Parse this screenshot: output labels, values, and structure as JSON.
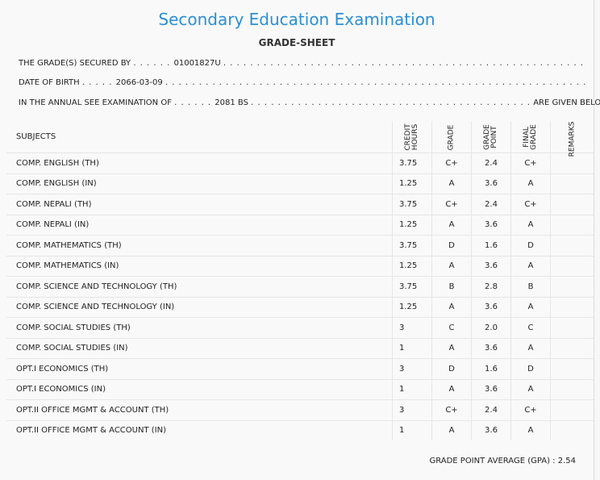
{
  "title": "Secondary Education Examination",
  "subtitle": "GRADE-SHEET",
  "info": {
    "secured_label": "THE GRADE(S) SECURED BY",
    "secured_value": "01001827U",
    "dob_label": "DATE OF BIRTH",
    "dob_value": "2066-03-09",
    "exam_label": "IN THE ANNUAL SEE EXAMINATION OF",
    "exam_value": "2081 BS",
    "given_below": "ARE GIVEN BELOW . . ."
  },
  "table": {
    "headers": {
      "subjects": "SUBJECTS",
      "credit_1": "CREDIT",
      "credit_2": "HOURS",
      "grade": "GRADE",
      "gp_1": "GRADE",
      "gp_2": "POINT",
      "fg_1": "FINAL",
      "fg_2": "GRADE",
      "remarks": "REMARKS"
    },
    "rows": [
      {
        "subject": "COMP. ENGLISH (TH)",
        "credit": "3.75",
        "grade": "C+",
        "gp": "2.4",
        "final": "C+"
      },
      {
        "subject": "COMP. ENGLISH (IN)",
        "credit": "1.25",
        "grade": "A",
        "gp": "3.6",
        "final": "A"
      },
      {
        "subject": "COMP. NEPALI (TH)",
        "credit": "3.75",
        "grade": "C+",
        "gp": "2.4",
        "final": "C+"
      },
      {
        "subject": "COMP. NEPALI (IN)",
        "credit": "1.25",
        "grade": "A",
        "gp": "3.6",
        "final": "A"
      },
      {
        "subject": "COMP. MATHEMATICS (TH)",
        "credit": "3.75",
        "grade": "D",
        "gp": "1.6",
        "final": "D"
      },
      {
        "subject": "COMP. MATHEMATICS (IN)",
        "credit": "1.25",
        "grade": "A",
        "gp": "3.6",
        "final": "A"
      },
      {
        "subject": "COMP. SCIENCE AND TECHNOLOGY (TH)",
        "credit": "3.75",
        "grade": "B",
        "gp": "2.8",
        "final": "B"
      },
      {
        "subject": "COMP. SCIENCE AND TECHNOLOGY (IN)",
        "credit": "1.25",
        "grade": "A",
        "gp": "3.6",
        "final": "A"
      },
      {
        "subject": "COMP. SOCIAL STUDIES (TH)",
        "credit": "3",
        "grade": "C",
        "gp": "2.0",
        "final": "C"
      },
      {
        "subject": "COMP. SOCIAL STUDIES (IN)",
        "credit": "1",
        "grade": "A",
        "gp": "3.6",
        "final": "A"
      },
      {
        "subject": "OPT.I ECONOMICS (TH)",
        "credit": "3",
        "grade": "D",
        "gp": "1.6",
        "final": "D"
      },
      {
        "subject": "OPT.I ECONOMICS (IN)",
        "credit": "1",
        "grade": "A",
        "gp": "3.6",
        "final": "A"
      },
      {
        "subject": "OPT.II OFFICE MGMT & ACCOUNT (TH)",
        "credit": "3",
        "grade": "C+",
        "gp": "2.4",
        "final": "C+"
      },
      {
        "subject": "OPT.II OFFICE MGMT & ACCOUNT (IN)",
        "credit": "1",
        "grade": "A",
        "gp": "3.6",
        "final": "A"
      }
    ]
  },
  "gpa": {
    "label": "GRADE POINT AVERAGE (GPA) :",
    "value": "2.54"
  }
}
